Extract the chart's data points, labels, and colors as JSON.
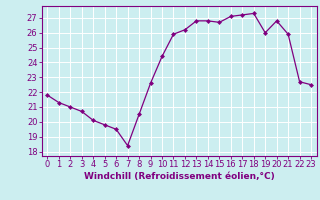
{
  "x": [
    0,
    1,
    2,
    3,
    4,
    5,
    6,
    7,
    8,
    9,
    10,
    11,
    12,
    13,
    14,
    15,
    16,
    17,
    18,
    19,
    20,
    21,
    22,
    23
  ],
  "y": [
    21.8,
    21.3,
    21.0,
    20.7,
    20.1,
    19.8,
    19.5,
    18.4,
    20.5,
    22.6,
    24.4,
    25.9,
    26.2,
    26.8,
    26.8,
    26.7,
    27.1,
    27.2,
    27.3,
    26.0,
    26.8,
    25.9,
    22.7,
    22.5
  ],
  "line_color": "#800080",
  "marker": "D",
  "marker_size": 2.0,
  "bg_color": "#cceef0",
  "grid_color": "#ffffff",
  "xlabel": "Windchill (Refroidissement éolien,°C)",
  "xlabel_fontsize": 6.5,
  "ylabel_ticks": [
    18,
    19,
    20,
    21,
    22,
    23,
    24,
    25,
    26,
    27
  ],
  "xtick_labels": [
    "0",
    "1",
    "2",
    "3",
    "4",
    "5",
    "6",
    "7",
    "8",
    "9",
    "10",
    "11",
    "12",
    "13",
    "14",
    "15",
    "16",
    "17",
    "18",
    "19",
    "20",
    "21",
    "22",
    "23"
  ],
  "ylim": [
    17.7,
    27.8
  ],
  "xlim": [
    -0.5,
    23.5
  ],
  "tick_color": "#800080",
  "tick_fontsize": 6.0,
  "spine_color": "#800080",
  "linewidth": 0.9
}
